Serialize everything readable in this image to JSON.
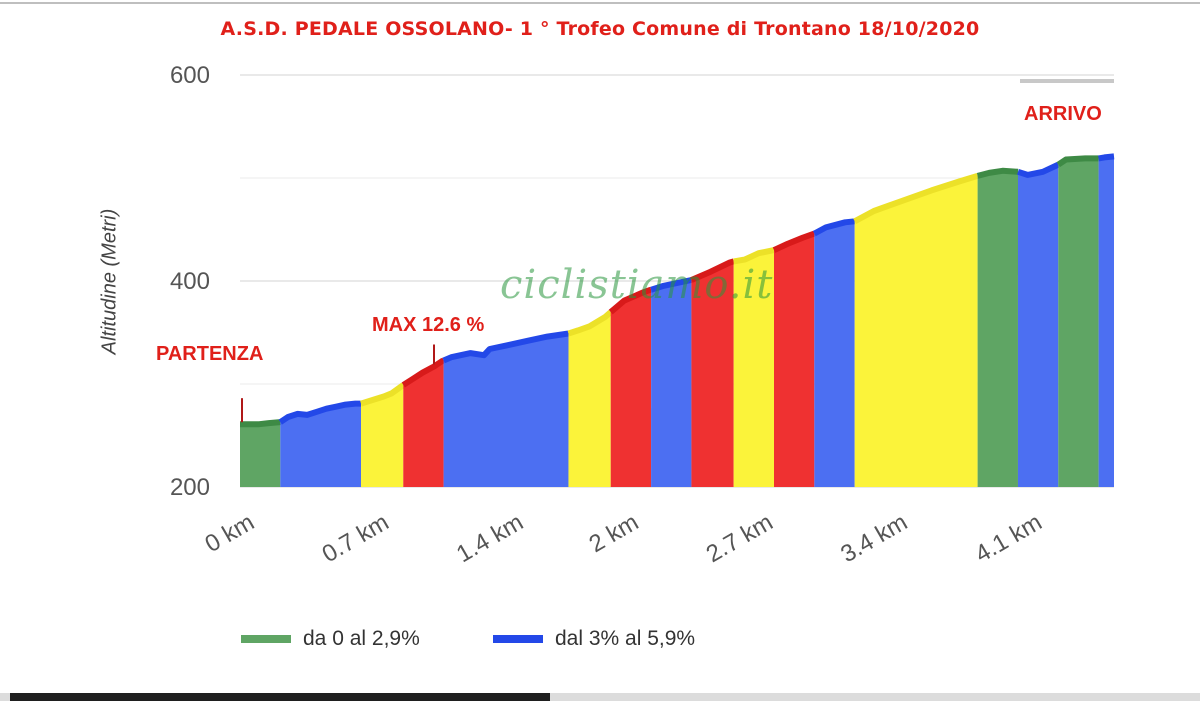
{
  "chart_data": {
    "type": "area",
    "title": "A.S.D. PEDALE OSSOLANO- 1 ° Trofeo Comune di Trontano 18/10/2020",
    "ylabel": "Altitudine (Metri)",
    "xlabel": "",
    "ylim": [
      200,
      600
    ],
    "xlim": [
      0,
      4.55
    ],
    "y_ticks": [
      "200",
      "400",
      "600"
    ],
    "x_tick_values": [
      0,
      0.7,
      1.4,
      2.0,
      2.7,
      3.4,
      4.1
    ],
    "x_ticks": [
      "0 km",
      "0.7 km",
      "1.4 km",
      "2 km",
      "2.7 km",
      "3.4 km",
      "4.1 km"
    ],
    "grid": true,
    "grade_colors": {
      "green": "#5fa564",
      "blue": "#4c6ff2",
      "yellow": "#fbf33a",
      "red": "#ef3131"
    },
    "line_colors": {
      "green": "#3e8a45",
      "blue": "#2348e8",
      "yellow": "#ece128",
      "red": "#d81a1a"
    },
    "profile": [
      [
        0,
        261
      ],
      [
        0.05,
        261
      ],
      [
        0.1,
        261
      ],
      [
        0.15,
        262
      ],
      [
        0.21,
        263
      ],
      [
        0.25,
        268
      ],
      [
        0.3,
        271
      ],
      [
        0.35,
        270
      ],
      [
        0.4,
        273
      ],
      [
        0.45,
        276
      ],
      [
        0.5,
        278
      ],
      [
        0.55,
        280
      ],
      [
        0.6,
        281
      ],
      [
        0.63,
        281
      ],
      [
        0.7,
        285
      ],
      [
        0.75,
        288
      ],
      [
        0.79,
        291
      ],
      [
        0.85,
        299
      ],
      [
        0.9,
        305
      ],
      [
        0.95,
        311
      ],
      [
        1.0,
        316
      ],
      [
        1.01,
        317
      ],
      [
        1.05,
        322
      ],
      [
        1.1,
        326
      ],
      [
        1.2,
        330
      ],
      [
        1.27,
        328
      ],
      [
        1.3,
        334
      ],
      [
        1.4,
        338
      ],
      [
        1.5,
        342
      ],
      [
        1.6,
        346
      ],
      [
        1.71,
        349
      ],
      [
        1.76,
        352
      ],
      [
        1.82,
        356
      ],
      [
        1.9,
        365
      ],
      [
        1.95,
        373
      ],
      [
        2.0,
        381
      ],
      [
        2.1,
        389
      ],
      [
        2.13,
        391
      ],
      [
        2.2,
        395
      ],
      [
        2.3,
        399
      ],
      [
        2.35,
        401
      ],
      [
        2.45,
        409
      ],
      [
        2.55,
        418
      ],
      [
        2.57,
        419
      ],
      [
        2.63,
        421
      ],
      [
        2.7,
        427
      ],
      [
        2.78,
        430
      ],
      [
        2.85,
        436
      ],
      [
        2.93,
        442
      ],
      [
        2.99,
        446
      ],
      [
        3.05,
        452
      ],
      [
        3.15,
        457
      ],
      [
        3.2,
        458
      ],
      [
        3.3,
        468
      ],
      [
        3.45,
        478
      ],
      [
        3.6,
        488
      ],
      [
        3.75,
        497
      ],
      [
        3.84,
        502
      ],
      [
        3.9,
        505
      ],
      [
        3.97,
        507
      ],
      [
        4.05,
        506
      ],
      [
        4.1,
        503
      ],
      [
        4.18,
        506
      ],
      [
        4.26,
        513
      ],
      [
        4.3,
        518
      ],
      [
        4.4,
        519
      ],
      [
        4.47,
        519
      ],
      [
        4.5,
        520
      ],
      [
        4.55,
        521
      ]
    ],
    "segments": [
      {
        "from": 0.0,
        "to": 0.21,
        "grade": "green"
      },
      {
        "from": 0.21,
        "to": 0.63,
        "grade": "blue"
      },
      {
        "from": 0.63,
        "to": 0.85,
        "grade": "yellow"
      },
      {
        "from": 0.85,
        "to": 1.06,
        "grade": "red"
      },
      {
        "from": 1.06,
        "to": 1.71,
        "grade": "blue"
      },
      {
        "from": 1.71,
        "to": 1.93,
        "grade": "yellow"
      },
      {
        "from": 1.93,
        "to": 2.14,
        "grade": "red"
      },
      {
        "from": 2.14,
        "to": 2.35,
        "grade": "blue"
      },
      {
        "from": 2.35,
        "to": 2.57,
        "grade": "red"
      },
      {
        "from": 2.57,
        "to": 2.78,
        "grade": "yellow"
      },
      {
        "from": 2.78,
        "to": 2.99,
        "grade": "red"
      },
      {
        "from": 2.99,
        "to": 3.2,
        "grade": "blue"
      },
      {
        "from": 3.2,
        "to": 3.84,
        "grade": "yellow"
      },
      {
        "from": 3.84,
        "to": 4.05,
        "grade": "green"
      },
      {
        "from": 4.05,
        "to": 4.26,
        "grade": "blue"
      },
      {
        "from": 4.26,
        "to": 4.47,
        "grade": "green"
      },
      {
        "from": 4.47,
        "to": 4.55,
        "grade": "blue"
      }
    ],
    "annotations": {
      "start": "PARTENZA",
      "max": "MAX 12.6 %",
      "finish": "ARRIVO"
    },
    "legend": [
      {
        "label": "da 0 al 2,9%",
        "grade": "green"
      },
      {
        "label": "dal 3% al 5,9%",
        "grade": "blue"
      }
    ]
  },
  "watermark": "ciclistiamo.it",
  "viewer": {
    "progress_fraction": 0.45
  }
}
